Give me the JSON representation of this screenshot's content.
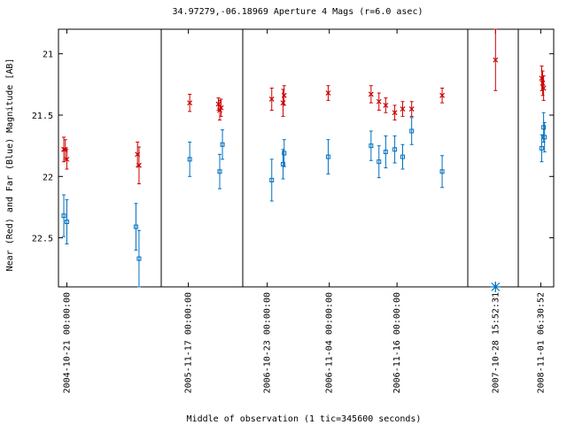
{
  "chart_data": {
    "type": "scatter",
    "title": "34.97279,-06.18969   Aperture 4 Mags (r=6.0 asec)",
    "xlabel": "Middle of observation (1 tic=345600 seconds)",
    "ylabel": "Near (Red) and Far (Blue) Magnitude [AB]",
    "ylim": [
      22.9,
      20.8
    ],
    "yticks": [
      21,
      21.5,
      22,
      22.5
    ],
    "y_inverted": true,
    "grid": false,
    "colors": {
      "near": "#cc0000",
      "far": "#0070c0"
    },
    "panels": [
      {
        "xticks": [
          {
            "x": 0.1,
            "label": "2004-10-21 00:00:00"
          }
        ],
        "near": [
          {
            "x": 0.0,
            "y": 21.78,
            "err": 0.1
          },
          {
            "x": 0.05,
            "y": 21.78,
            "err": 0.08
          },
          {
            "x": 0.1,
            "y": 21.86,
            "err": 0.08
          },
          {
            "x": 2.4,
            "y": 21.82,
            "err": 0.1
          },
          {
            "x": 2.45,
            "y": 21.91,
            "err": 0.15
          }
        ],
        "far": [
          {
            "x": 0.0,
            "y": 22.32,
            "err": 0.17
          },
          {
            "x": 0.1,
            "y": 22.37,
            "err": 0.18
          },
          {
            "x": 2.35,
            "y": 22.41,
            "err": 0.19
          },
          {
            "x": 2.45,
            "y": 22.67,
            "err": 0.23
          }
        ]
      },
      {
        "xticks": [
          {
            "x": 0.8,
            "label": "2005-11-17 00:00:00"
          }
        ],
        "near": [
          {
            "x": 0.85,
            "y": 21.4,
            "err": 0.07
          },
          {
            "x": 1.9,
            "y": 21.41,
            "err": 0.05
          },
          {
            "x": 1.95,
            "y": 21.46,
            "err": 0.08
          },
          {
            "x": 2.0,
            "y": 21.44,
            "err": 0.07
          }
        ],
        "far": [
          {
            "x": 0.85,
            "y": 21.86,
            "err": 0.14
          },
          {
            "x": 1.95,
            "y": 21.96,
            "err": 0.14
          },
          {
            "x": 2.05,
            "y": 21.74,
            "err": 0.12
          }
        ]
      },
      {
        "xticks": [
          {
            "x": 0.85,
            "label": "2006-10-23 00:00:00"
          },
          {
            "x": 3.6,
            "label": "2006-11-04 00:00:00"
          },
          {
            "x": 6.6,
            "label": "2006-11-16 00:00:00"
          }
        ],
        "near": [
          {
            "x": 1.05,
            "y": 21.37,
            "err": 0.09
          },
          {
            "x": 1.55,
            "y": 21.4,
            "err": 0.11
          },
          {
            "x": 1.6,
            "y": 21.34,
            "err": 0.08
          },
          {
            "x": 3.55,
            "y": 21.32,
            "err": 0.06
          },
          {
            "x": 5.45,
            "y": 21.33,
            "err": 0.07
          },
          {
            "x": 5.8,
            "y": 21.39,
            "err": 0.07
          },
          {
            "x": 6.1,
            "y": 21.42,
            "err": 0.06
          },
          {
            "x": 6.5,
            "y": 21.48,
            "err": 0.06
          },
          {
            "x": 6.85,
            "y": 21.45,
            "err": 0.06
          },
          {
            "x": 7.25,
            "y": 21.45,
            "err": 0.06
          },
          {
            "x": 8.6,
            "y": 21.34,
            "err": 0.06
          }
        ],
        "far": [
          {
            "x": 1.05,
            "y": 22.03,
            "err": 0.17
          },
          {
            "x": 1.55,
            "y": 21.9,
            "err": 0.12
          },
          {
            "x": 1.6,
            "y": 21.81,
            "err": 0.11
          },
          {
            "x": 3.55,
            "y": 21.84,
            "err": 0.14
          },
          {
            "x": 5.45,
            "y": 21.75,
            "err": 0.12
          },
          {
            "x": 5.8,
            "y": 21.88,
            "err": 0.13
          },
          {
            "x": 6.1,
            "y": 21.8,
            "err": 0.13
          },
          {
            "x": 6.5,
            "y": 21.78,
            "err": 0.11
          },
          {
            "x": 6.85,
            "y": 21.84,
            "err": 0.1
          },
          {
            "x": 7.25,
            "y": 21.63,
            "err": 0.11
          },
          {
            "x": 8.6,
            "y": 21.96,
            "err": 0.13
          }
        ]
      },
      {
        "xticks": [
          {
            "x": 0.9,
            "label": "2007-10-28 15:52:31"
          }
        ],
        "near": [
          {
            "x": 0.9,
            "y": 21.05,
            "err": 0.25
          }
        ],
        "far": [],
        "outlier_far": {
          "x": 0.9,
          "y": 22.9
        }
      },
      {
        "xticks": [
          {
            "x": 0.9,
            "label": "2008-11-01 06:30:52"
          }
        ],
        "near": [
          {
            "x": 0.95,
            "y": 21.2,
            "err": 0.1
          },
          {
            "x": 1.0,
            "y": 21.24,
            "err": 0.1
          },
          {
            "x": 1.05,
            "y": 21.28,
            "err": 0.1
          }
        ],
        "far": [
          {
            "x": 0.95,
            "y": 21.77,
            "err": 0.11
          },
          {
            "x": 1.05,
            "y": 21.6,
            "err": 0.12
          },
          {
            "x": 1.1,
            "y": 21.68,
            "err": 0.12
          }
        ]
      }
    ]
  }
}
